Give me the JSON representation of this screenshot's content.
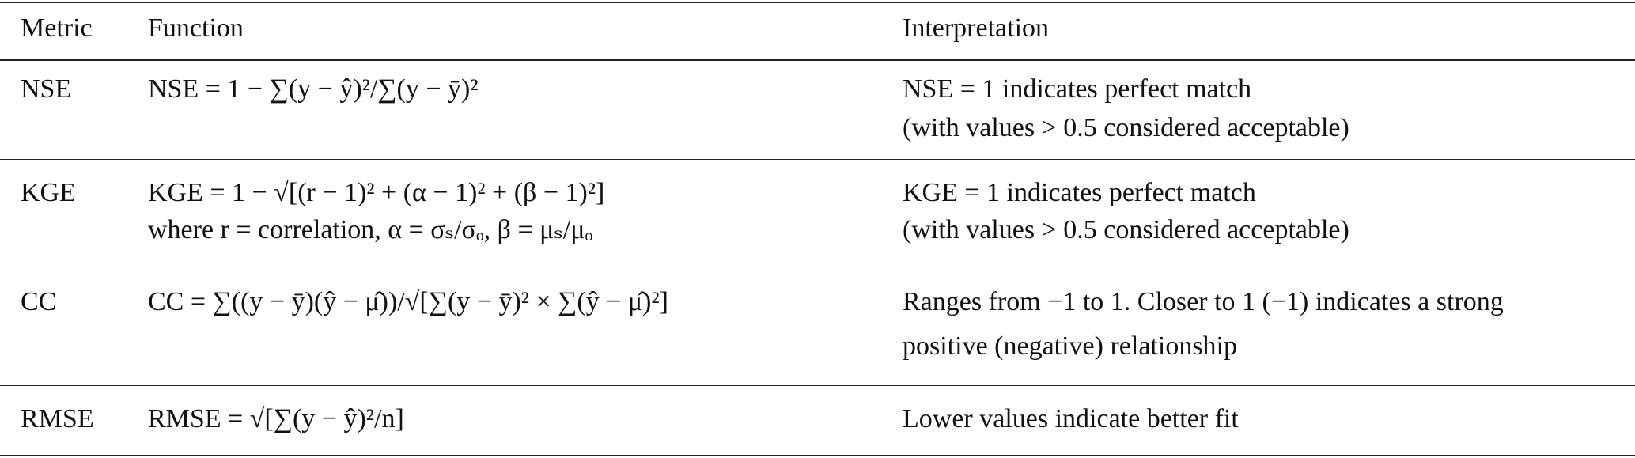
{
  "table": {
    "header": [
      "Metric",
      "Function",
      "Interpretation"
    ],
    "rows": [
      {
        "metric": "NSE",
        "function": [
          "NSE = 1 − ∑(y − ŷ)²/∑(y − ȳ)²"
        ],
        "interpretation": [
          "NSE = 1 indicates perfect match",
          "(with values > 0.5 considered acceptable)"
        ]
      },
      {
        "metric": "KGE",
        "function": [
          "KGE = 1 − √[(r − 1)² + (α − 1)² + (β − 1)²]",
          "where r = correlation, α = σₛ/σₒ, β = μₛ/μₒ"
        ],
        "interpretation": [
          "KGE = 1 indicates perfect match",
          "(with values > 0.5 considered acceptable)"
        ]
      },
      {
        "metric": "CC",
        "function": [
          "CC = ∑((y − ȳ)(ŷ − μ̂))/√[∑(y − ȳ)² × ∑(ŷ − μ̂)²]"
        ],
        "interpretation": [
          "Ranges from −1 to 1. Closer to 1 (−1) indicates a strong",
          "positive (negative) relationship"
        ]
      },
      {
        "metric": "RMSE",
        "function": [
          "RMSE = √[∑(y − ŷ)²/n]"
        ],
        "interpretation": [
          "Lower values indicate better fit"
        ]
      }
    ]
  }
}
